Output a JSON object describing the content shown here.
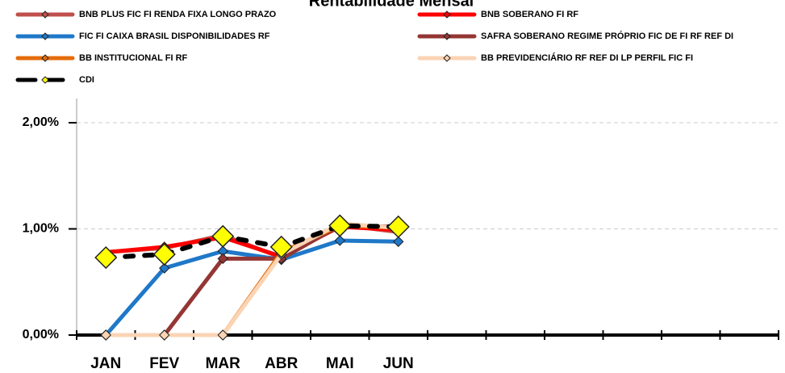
{
  "chart_data": {
    "type": "line",
    "title": "Rentabilidade Mensal",
    "categories": [
      "JAN",
      "FEV",
      "MAR",
      "ABR",
      "MAI",
      "JUN",
      null,
      null,
      null,
      null,
      null,
      null
    ],
    "ylim": [
      0,
      2
    ],
    "yticks": [
      {
        "value": 0,
        "label": "0,00%"
      },
      {
        "value": 1,
        "label": "1,00%"
      },
      {
        "value": 2,
        "label": "2,00%"
      }
    ],
    "grid": true,
    "series": [
      {
        "name": "BNB PLUS FIC FI RENDA FIXA LONGO PRAZO",
        "color": "#c0504d",
        "values": [
          0.78,
          0.82,
          0.94,
          0.73,
          1.04,
          0.97,
          null,
          null,
          null,
          null,
          null,
          null
        ]
      },
      {
        "name": "BNB SOBERANO FI RF",
        "color": "#ff0000",
        "values": [
          0.78,
          0.83,
          0.92,
          0.74,
          1.02,
          0.99,
          null,
          null,
          null,
          null,
          null,
          null
        ]
      },
      {
        "name": "FIC FI CAIXA BRASIL DISPONIBILIDADES RF",
        "color": "#1f78c8",
        "values": [
          0,
          0.63,
          0.79,
          0.71,
          0.89,
          0.88,
          null,
          null,
          null,
          null,
          null,
          null
        ]
      },
      {
        "name": "SAFRA SOBERANO REGIME PRÓPRIO FIC DE FI RF REF DI",
        "color": "#943634",
        "values": [
          0,
          0,
          0.72,
          0.72,
          1.03,
          1.02,
          null,
          null,
          null,
          null,
          null,
          null
        ]
      },
      {
        "name": "BB INSTITUCIONAL FI RF",
        "color": "#e46c0a",
        "values": [
          0,
          0,
          0,
          0.78,
          1.03,
          1.01,
          null,
          null,
          null,
          null,
          null,
          null
        ]
      },
      {
        "name": "BB PREVIDENCIÁRIO RF REF DI LP PERFIL FIC FI",
        "color": "#fbd4b4",
        "values": [
          0,
          0,
          0,
          0.76,
          1.05,
          1.01,
          null,
          null,
          null,
          null,
          null,
          null
        ]
      },
      {
        "name": "CDI",
        "color": "#000000",
        "marker_color": "#ffff00",
        "line_style": "dotted",
        "values": [
          0.73,
          0.76,
          0.93,
          0.83,
          1.03,
          1.02,
          null,
          null,
          null,
          null,
          null,
          null
        ]
      }
    ]
  }
}
